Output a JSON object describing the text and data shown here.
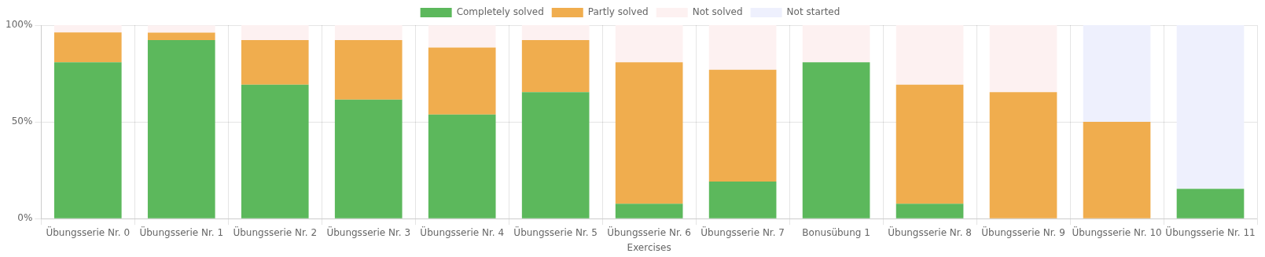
{
  "chart_data": {
    "type": "bar",
    "stacked": true,
    "xlabel": "Exercises",
    "categories": [
      "Übungsserie Nr. 0",
      "Übungsserie Nr. 1",
      "Übungsserie Nr. 2",
      "Übungsserie Nr. 3",
      "Übungsserie Nr. 4",
      "Übungsserie Nr. 5",
      "Übungsserie Nr. 6",
      "Übungsserie Nr. 7",
      "Bonusübung 1",
      "Übungsserie Nr. 8",
      "Übungsserie Nr. 9",
      "Übungsserie Nr. 10",
      "Übungsserie Nr. 11"
    ],
    "series": [
      {
        "name": "Completely solved",
        "color": "#5cb85c",
        "values": [
          80.8,
          92.3,
          69.2,
          61.5,
          53.8,
          65.4,
          7.7,
          19.2,
          80.8,
          7.7,
          0,
          0,
          15.4
        ]
      },
      {
        "name": "Partly solved",
        "color": "#f0ad4e",
        "values": [
          15.4,
          3.8,
          23.1,
          30.8,
          34.6,
          26.9,
          73.1,
          57.7,
          0,
          61.5,
          65.4,
          50,
          0
        ]
      },
      {
        "name": "Not solved",
        "color": "#fdf1f1",
        "values": [
          3.8,
          3.8,
          7.7,
          7.7,
          11.5,
          7.7,
          19.2,
          23.1,
          19.2,
          30.8,
          34.6,
          0,
          0
        ]
      },
      {
        "name": "Not started",
        "color": "#eef0fd",
        "values": [
          0,
          0,
          0,
          0,
          0,
          0,
          0,
          0,
          0,
          0,
          0,
          50,
          84.6
        ]
      }
    ],
    "ylim": [
      0,
      100
    ],
    "yticks": [
      {
        "value": 0,
        "label": "0%"
      },
      {
        "value": 50,
        "label": "50%"
      },
      {
        "value": 100,
        "label": "100%"
      }
    ],
    "grid": true,
    "legend": "top"
  }
}
